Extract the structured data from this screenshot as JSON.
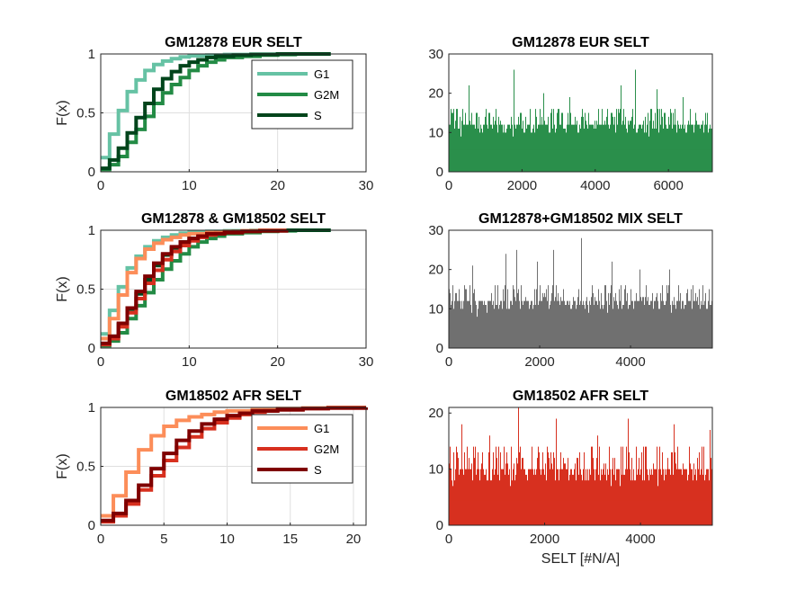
{
  "colors": {
    "eur_g1": "#66C2A4",
    "eur_g2m": "#238B45",
    "eur_s": "#00441B",
    "afr_g1": "#FC8D59",
    "afr_g2m": "#D7301F",
    "afr_s": "#7F0000",
    "hist_eur": "#2A8F4B",
    "hist_mix": "#707070",
    "hist_afr": "#D7301F",
    "grid": "#dfdfdf",
    "axis": "#262626"
  },
  "chart_data": [
    {
      "id": "cdf_eur",
      "type": "line",
      "title": "GM12878 EUR SELT",
      "xlabel": "",
      "ylabel": "F(x)",
      "xlim": [
        0,
        30
      ],
      "ylim": [
        0,
        1
      ],
      "xticks": [
        0,
        10,
        20,
        30
      ],
      "yticks": [
        0,
        0.5,
        1
      ],
      "xtick_labels": [
        "0",
        "10",
        "20",
        "30"
      ],
      "ytick_labels": [
        "0",
        "0.5",
        "1"
      ],
      "grid": true,
      "legend": "top-right",
      "series": [
        {
          "name": "G1",
          "color_key": "eur_g1",
          "x": [
            0,
            1,
            2,
            3,
            4,
            5,
            6,
            7,
            8,
            9,
            10,
            12,
            14,
            17,
            20,
            26
          ],
          "y": [
            0.12,
            0.32,
            0.52,
            0.68,
            0.78,
            0.86,
            0.91,
            0.94,
            0.96,
            0.975,
            0.985,
            0.99,
            0.995,
            0.998,
            1,
            1
          ]
        },
        {
          "name": "G2M",
          "color_key": "eur_g2m",
          "x": [
            0,
            1,
            2,
            3,
            4,
            5,
            6,
            7,
            8,
            9,
            10,
            11,
            12,
            13,
            14,
            16,
            18,
            20,
            22,
            26
          ],
          "y": [
            0.02,
            0.06,
            0.13,
            0.25,
            0.36,
            0.47,
            0.58,
            0.67,
            0.74,
            0.8,
            0.86,
            0.9,
            0.93,
            0.95,
            0.97,
            0.98,
            0.99,
            0.995,
            1,
            1
          ]
        },
        {
          "name": "S",
          "color_key": "eur_s",
          "x": [
            0,
            1,
            2,
            3,
            4,
            5,
            6,
            7,
            8,
            9,
            10,
            11,
            12,
            13,
            15,
            17,
            20,
            26
          ],
          "y": [
            0.03,
            0.1,
            0.2,
            0.33,
            0.46,
            0.58,
            0.7,
            0.79,
            0.85,
            0.9,
            0.93,
            0.95,
            0.97,
            0.98,
            0.99,
            0.995,
            1,
            1
          ]
        }
      ]
    },
    {
      "id": "hist_eur",
      "type": "bar",
      "title": "GM12878 EUR SELT",
      "xlabel": "",
      "ylabel": "",
      "xlim": [
        0,
        7200
      ],
      "ylim": [
        0,
        30
      ],
      "xticks": [
        0,
        2000,
        4000,
        6000
      ],
      "yticks": [
        0,
        10,
        20,
        30
      ],
      "xtick_labels": [
        "0",
        "2000",
        "4000",
        "6000"
      ],
      "ytick_labels": [
        "0",
        "10",
        "20",
        "30"
      ],
      "n": 7200,
      "base_level": 10,
      "peaks": [
        [
          1780,
          26
        ],
        [
          5100,
          26
        ],
        [
          560,
          22
        ],
        [
          4700,
          22
        ],
        [
          5700,
          21
        ],
        [
          2600,
          20
        ],
        [
          3300,
          19
        ],
        [
          6400,
          19
        ]
      ],
      "color_key": "hist_eur"
    },
    {
      "id": "cdf_mix",
      "type": "line",
      "title": "GM12878 & GM18502 SELT",
      "xlabel": "",
      "ylabel": "F(x)",
      "xlim": [
        0,
        30
      ],
      "ylim": [
        0,
        1
      ],
      "xticks": [
        0,
        10,
        20,
        30
      ],
      "yticks": [
        0,
        0.5,
        1
      ],
      "xtick_labels": [
        "0",
        "10",
        "20",
        "30"
      ],
      "ytick_labels": [
        "0",
        "0.5",
        "1"
      ],
      "grid": true,
      "series": [
        {
          "color_key": "eur_g1",
          "x": [
            0,
            1,
            2,
            3,
            4,
            5,
            6,
            7,
            8,
            9,
            10,
            12,
            14,
            17,
            20,
            26
          ],
          "y": [
            0.12,
            0.32,
            0.52,
            0.68,
            0.78,
            0.86,
            0.91,
            0.94,
            0.96,
            0.975,
            0.985,
            0.99,
            0.995,
            0.998,
            1,
            1
          ]
        },
        {
          "color_key": "eur_g2m",
          "x": [
            0,
            1,
            2,
            3,
            4,
            5,
            6,
            7,
            8,
            9,
            10,
            11,
            12,
            13,
            14,
            16,
            18,
            20,
            22,
            26
          ],
          "y": [
            0.02,
            0.06,
            0.13,
            0.25,
            0.36,
            0.47,
            0.58,
            0.67,
            0.74,
            0.8,
            0.86,
            0.9,
            0.93,
            0.95,
            0.97,
            0.98,
            0.99,
            0.995,
            1,
            1
          ]
        },
        {
          "color_key": "eur_s",
          "x": [
            0,
            1,
            2,
            3,
            4,
            5,
            6,
            7,
            8,
            9,
            10,
            11,
            12,
            13,
            15,
            17,
            20,
            26
          ],
          "y": [
            0.03,
            0.1,
            0.2,
            0.33,
            0.46,
            0.58,
            0.7,
            0.79,
            0.85,
            0.9,
            0.93,
            0.95,
            0.97,
            0.98,
            0.99,
            0.995,
            1,
            1
          ]
        },
        {
          "color_key": "afr_g1",
          "x": [
            0,
            1,
            2,
            3,
            4,
            5,
            6,
            7,
            8,
            9,
            10,
            12,
            14,
            16,
            18,
            21
          ],
          "y": [
            0.08,
            0.25,
            0.45,
            0.64,
            0.76,
            0.84,
            0.89,
            0.92,
            0.94,
            0.96,
            0.97,
            0.98,
            0.99,
            0.995,
            1,
            1
          ]
        },
        {
          "color_key": "afr_g2m",
          "x": [
            0,
            1,
            2,
            3,
            4,
            5,
            6,
            7,
            8,
            9,
            10,
            11,
            12,
            13,
            14,
            16,
            18,
            21
          ],
          "y": [
            0.03,
            0.08,
            0.18,
            0.3,
            0.42,
            0.55,
            0.66,
            0.75,
            0.82,
            0.87,
            0.91,
            0.94,
            0.96,
            0.97,
            0.98,
            0.99,
            0.995,
            1
          ]
        },
        {
          "color_key": "afr_s",
          "x": [
            0,
            1,
            2,
            3,
            4,
            5,
            6,
            7,
            8,
            9,
            10,
            11,
            12,
            14,
            16,
            18,
            21
          ],
          "y": [
            0.04,
            0.1,
            0.21,
            0.34,
            0.48,
            0.61,
            0.72,
            0.8,
            0.86,
            0.9,
            0.93,
            0.95,
            0.97,
            0.98,
            0.99,
            0.995,
            1
          ]
        }
      ]
    },
    {
      "id": "hist_mix",
      "type": "bar",
      "title": "GM12878+GM18502 MIX SELT",
      "xlabel": "",
      "ylabel": "",
      "xlim": [
        0,
        5800
      ],
      "ylim": [
        0,
        30
      ],
      "xticks": [
        0,
        2000,
        4000
      ],
      "yticks": [
        0,
        10,
        20,
        30
      ],
      "xtick_labels": [
        "0",
        "2000",
        "4000"
      ],
      "ytick_labels": [
        "0",
        "10",
        "20",
        "30"
      ],
      "n": 5800,
      "base_level": 10,
      "peaks": [
        [
          2920,
          28
        ],
        [
          1500,
          25
        ],
        [
          2300,
          25
        ],
        [
          1250,
          24
        ],
        [
          520,
          21
        ],
        [
          1950,
          22
        ],
        [
          3600,
          22
        ],
        [
          4200,
          20
        ],
        [
          4850,
          20
        ]
      ],
      "color_key": "hist_mix"
    },
    {
      "id": "cdf_afr",
      "type": "line",
      "title": "GM18502 AFR SELT",
      "xlabel": "",
      "ylabel": "F(x)",
      "xlim": [
        0,
        21
      ],
      "ylim": [
        0,
        1
      ],
      "xticks": [
        0,
        5,
        10,
        15,
        20
      ],
      "yticks": [
        0,
        0.5,
        1
      ],
      "xtick_labels": [
        "0",
        "5",
        "10",
        "15",
        "20"
      ],
      "ytick_labels": [
        "0",
        "0.5",
        "1"
      ],
      "grid": true,
      "legend": "top-right",
      "series": [
        {
          "name": "G1",
          "color_key": "afr_g1",
          "x": [
            0,
            1,
            2,
            3,
            4,
            5,
            6,
            7,
            8,
            9,
            10,
            12,
            14,
            16,
            18,
            21
          ],
          "y": [
            0.08,
            0.25,
            0.45,
            0.64,
            0.76,
            0.84,
            0.89,
            0.92,
            0.94,
            0.96,
            0.97,
            0.98,
            0.99,
            0.995,
            1,
            1
          ]
        },
        {
          "name": "G2M",
          "color_key": "afr_g2m",
          "x": [
            0,
            1,
            2,
            3,
            4,
            5,
            6,
            7,
            8,
            9,
            10,
            11,
            12,
            13,
            14,
            16,
            18,
            21
          ],
          "y": [
            0.03,
            0.08,
            0.18,
            0.3,
            0.42,
            0.55,
            0.66,
            0.75,
            0.82,
            0.87,
            0.91,
            0.94,
            0.96,
            0.97,
            0.98,
            0.99,
            0.995,
            1
          ]
        },
        {
          "name": "S",
          "color_key": "afr_s",
          "x": [
            0,
            1,
            2,
            3,
            4,
            5,
            6,
            7,
            8,
            9,
            10,
            11,
            12,
            14,
            16,
            18,
            21
          ],
          "y": [
            0.04,
            0.1,
            0.21,
            0.34,
            0.48,
            0.61,
            0.72,
            0.8,
            0.86,
            0.9,
            0.93,
            0.95,
            0.97,
            0.98,
            0.99,
            0.995,
            1
          ]
        }
      ]
    },
    {
      "id": "hist_afr",
      "type": "bar",
      "title": "GM18502 AFR SELT",
      "xlabel": "SELT [#N/A]",
      "ylabel": "",
      "xlim": [
        0,
        5500
      ],
      "ylim": [
        0,
        21
      ],
      "xticks": [
        0,
        2000,
        4000
      ],
      "yticks": [
        0,
        10,
        20
      ],
      "xtick_labels": [
        "0",
        "2000",
        "4000"
      ],
      "ytick_labels": [
        "0",
        "10",
        "20"
      ],
      "n": 5500,
      "base_level": 8,
      "peaks": [
        [
          1450,
          21
        ],
        [
          3750,
          19
        ],
        [
          2250,
          19
        ],
        [
          270,
          18
        ],
        [
          4700,
          18
        ],
        [
          5450,
          17
        ],
        [
          850,
          16
        ],
        [
          3100,
          16
        ]
      ],
      "color_key": "hist_afr"
    }
  ]
}
